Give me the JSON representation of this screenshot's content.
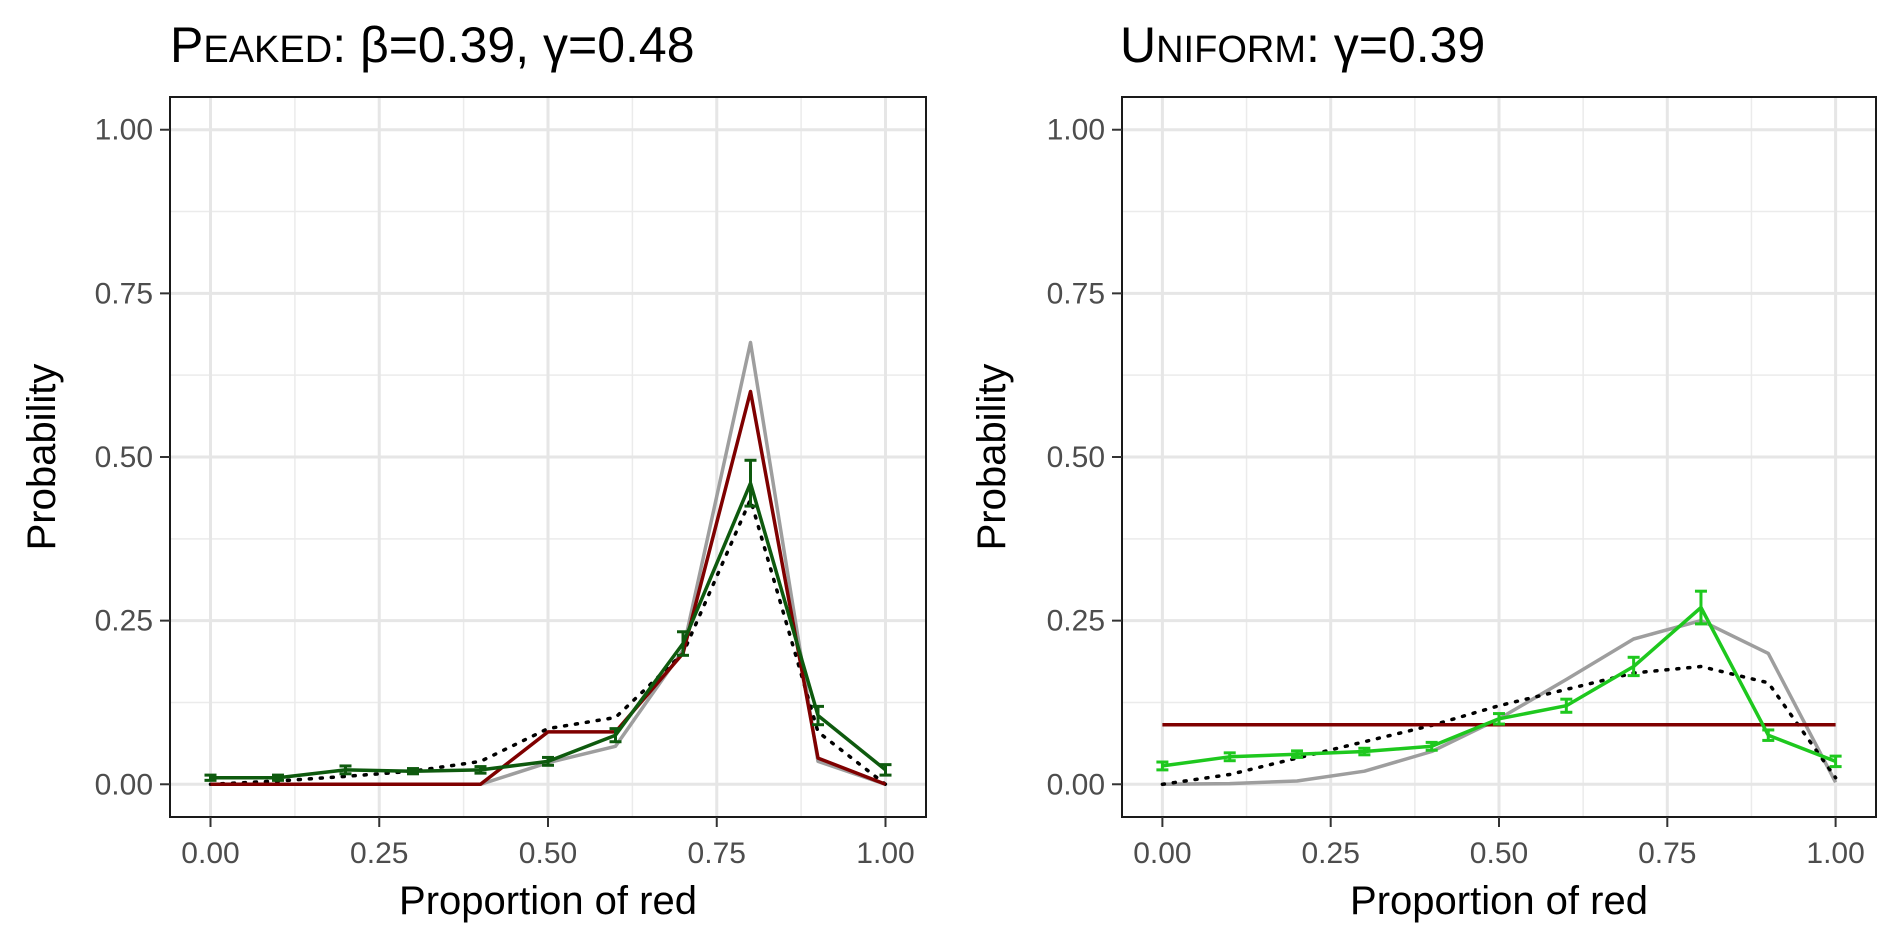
{
  "chart_data": [
    {
      "type": "line",
      "title": {
        "lead": "P",
        "smallcaps": "EAKED",
        "rest": ": β=0.39, γ=0.48"
      },
      "xlabel": "Proportion of red",
      "ylabel": "Probability",
      "xlim": [
        -0.06,
        1.06
      ],
      "ylim": [
        -0.05,
        1.05
      ],
      "xticks": [
        "0.00",
        "0.25",
        "0.50",
        "0.75",
        "1.00"
      ],
      "yticks": [
        "0.00",
        "0.25",
        "0.50",
        "0.75",
        "1.00"
      ],
      "grid": true,
      "x": [
        0.0,
        0.1,
        0.2,
        0.3,
        0.4,
        0.5,
        0.6,
        0.7,
        0.8,
        0.9,
        1.0
      ],
      "series": [
        {
          "color": "#9e9e9e",
          "style": "solid",
          "values": [
            0.0,
            0.0,
            0.0,
            0.0,
            0.0,
            0.033,
            0.058,
            0.205,
            0.675,
            0.035,
            0.0
          ]
        },
        {
          "color": "#000000",
          "style": "dotted",
          "values": [
            0.0,
            0.005,
            0.012,
            0.02,
            0.035,
            0.085,
            0.102,
            0.2,
            0.435,
            0.08,
            0.0
          ]
        },
        {
          "color": "#7f0000",
          "style": "solid",
          "values": [
            0.0,
            0.0,
            0.0,
            0.0,
            0.0,
            0.08,
            0.08,
            0.2,
            0.6,
            0.04,
            0.0
          ]
        },
        {
          "color": "#0e5a0e",
          "style": "solid",
          "errorbars": true,
          "values": [
            0.01,
            0.01,
            0.022,
            0.02,
            0.022,
            0.035,
            0.075,
            0.215,
            0.46,
            0.105,
            0.022
          ],
          "err": [
            0.004,
            0.004,
            0.006,
            0.004,
            0.005,
            0.006,
            0.01,
            0.018,
            0.035,
            0.014,
            0.008
          ]
        }
      ]
    },
    {
      "type": "line",
      "title": {
        "lead": "U",
        "smallcaps": "NIFORM",
        "rest": ": γ=0.39"
      },
      "xlabel": "Proportion of red",
      "ylabel": "Probability",
      "xlim": [
        -0.06,
        1.06
      ],
      "ylim": [
        -0.05,
        1.05
      ],
      "xticks": [
        "0.00",
        "0.25",
        "0.50",
        "0.75",
        "1.00"
      ],
      "yticks": [
        "0.00",
        "0.25",
        "0.50",
        "0.75",
        "1.00"
      ],
      "grid": true,
      "x": [
        0.0,
        0.1,
        0.2,
        0.3,
        0.4,
        0.5,
        0.6,
        0.7,
        0.8,
        0.9,
        1.0
      ],
      "series": [
        {
          "color": "#9e9e9e",
          "style": "solid",
          "values": [
            0.0,
            0.001,
            0.005,
            0.02,
            0.05,
            0.1,
            0.16,
            0.222,
            0.25,
            0.2,
            0.003
          ]
        },
        {
          "color": "#000000",
          "style": "dotted",
          "values": [
            0.0,
            0.015,
            0.04,
            0.065,
            0.09,
            0.12,
            0.145,
            0.17,
            0.18,
            0.155,
            0.01
          ]
        },
        {
          "color": "#7f0000",
          "style": "solid",
          "values": [
            0.091,
            0.091,
            0.091,
            0.091,
            0.091,
            0.091,
            0.091,
            0.091,
            0.091,
            0.091,
            0.091
          ]
        },
        {
          "color": "#1ec81e",
          "style": "solid",
          "errorbars": true,
          "values": [
            0.028,
            0.042,
            0.046,
            0.05,
            0.058,
            0.1,
            0.12,
            0.18,
            0.27,
            0.075,
            0.035
          ],
          "err": [
            0.006,
            0.006,
            0.005,
            0.005,
            0.006,
            0.008,
            0.01,
            0.014,
            0.025,
            0.008,
            0.008
          ]
        }
      ]
    }
  ]
}
